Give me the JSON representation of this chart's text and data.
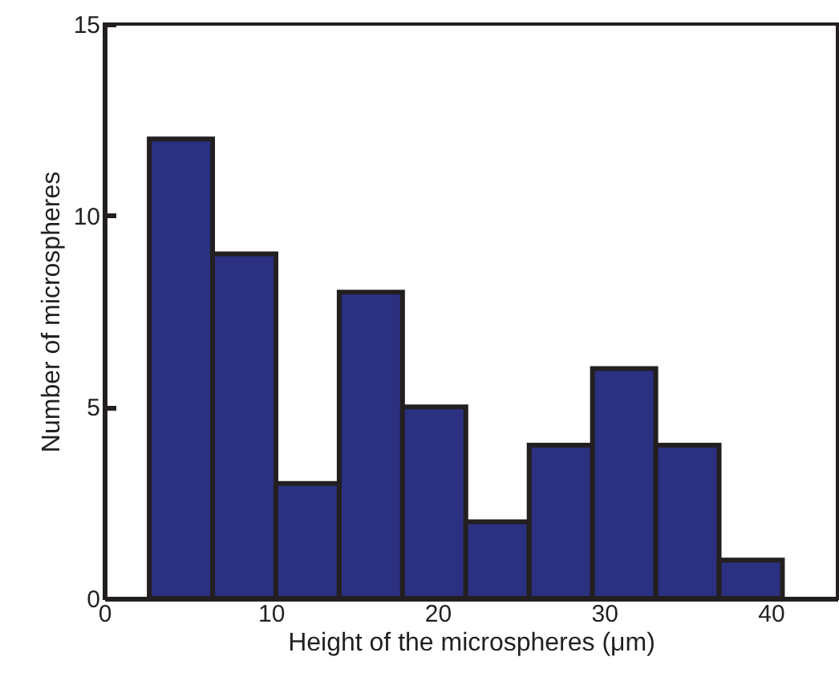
{
  "chart_data": {
    "type": "histogram",
    "xlabel": "Height of the microspheres (μm)",
    "ylabel": "Number of microspheres",
    "bins": [
      2.7,
      6.5,
      10.3,
      14.1,
      17.9,
      21.7,
      25.5,
      29.3,
      33.1,
      36.9,
      40.7
    ],
    "values": [
      12,
      9,
      3,
      8,
      5,
      2,
      4,
      6,
      4,
      1
    ],
    "color": "#2b3080",
    "xlim": [
      0,
      44
    ],
    "xticks": [
      0,
      10,
      20,
      30,
      40
    ],
    "ylim": [
      0,
      15
    ],
    "yticks": [
      0,
      5,
      10,
      15
    ],
    "grid": false
  }
}
